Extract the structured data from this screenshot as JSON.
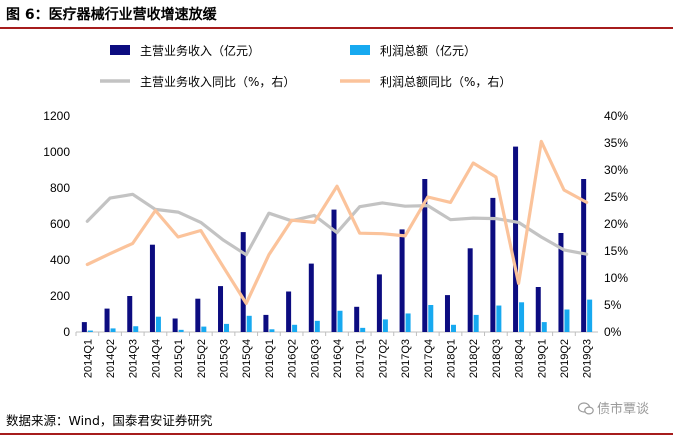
{
  "figure_title": "图 6：医疗器械行业营收增速放缓",
  "source_note": "数据来源：Wind，国泰君安证券研究",
  "watermark": "债市覃谈",
  "colors": {
    "revenue_bar": "#0c0c80",
    "profit_bar": "#17a9f0",
    "revenue_yoy_line": "#c3c3c3",
    "profit_yoy_line": "#fbc39b",
    "title_rule": "#a61c1c"
  },
  "chart_data": {
    "type": "bar",
    "title": "",
    "categories": [
      "2014Q1",
      "2014Q2",
      "2014Q3",
      "2014Q4",
      "2015Q1",
      "2015Q2",
      "2015Q3",
      "2015Q4",
      "2016Q1",
      "2016Q2",
      "2016Q3",
      "2016Q4",
      "2017Q1",
      "2017Q2",
      "2017Q3",
      "2017Q4",
      "2018Q1",
      "2018Q2",
      "2018Q3",
      "2018Q4",
      "2019Q1",
      "2019Q2",
      "2019Q3"
    ],
    "left_axis": {
      "ylim": [
        0,
        1200
      ],
      "ticks": [
        "0",
        "200",
        "400",
        "600",
        "800",
        "1000",
        "1200"
      ]
    },
    "right_axis": {
      "ylim": [
        0,
        40
      ],
      "ticks": [
        "0%",
        "5%",
        "10%",
        "15%",
        "20%",
        "25%",
        "30%",
        "35%",
        "40%"
      ]
    },
    "series": [
      {
        "name": "主营业务收入（亿元）",
        "type": "bar",
        "axis": "left",
        "values": [
          55,
          130,
          200,
          485,
          75,
          185,
          255,
          555,
          95,
          225,
          380,
          680,
          140,
          320,
          570,
          850,
          205,
          465,
          745,
          1030,
          250,
          550,
          850
        ]
      },
      {
        "name": "利润总额（亿元）",
        "type": "bar",
        "axis": "left",
        "values": [
          8,
          20,
          32,
          85,
          12,
          30,
          45,
          90,
          15,
          40,
          62,
          118,
          23,
          70,
          103,
          150,
          40,
          95,
          147,
          165,
          55,
          125,
          180
        ]
      },
      {
        "name": "主营业务收入同比（%，右）",
        "type": "line",
        "axis": "right",
        "values": [
          20.5,
          24.8,
          25.5,
          22.7,
          22.2,
          20.3,
          17.0,
          14.3,
          22.0,
          20.6,
          21.6,
          18.4,
          23.2,
          23.9,
          23.3,
          23.4,
          20.8,
          21.1,
          21.0,
          20.3,
          17.6,
          15.2,
          14.4
        ]
      },
      {
        "name": "利润总额同比（%，右）",
        "type": "line",
        "axis": "right",
        "values": [
          12.5,
          14.5,
          16.4,
          22.5,
          17.6,
          18.8,
          12.0,
          5.3,
          14.3,
          20.7,
          20.3,
          27.0,
          18.3,
          18.2,
          17.8,
          25.0,
          24.0,
          31.3,
          28.7,
          9.0,
          35.3,
          26.3,
          24.0
        ]
      }
    ],
    "legend": [
      "主营业务收入（亿元）",
      "利润总额（亿元）",
      "主营业务收入同比（%，右）",
      "利润总额同比（%，右）"
    ],
    "legend_position": "top",
    "grid": false
  }
}
